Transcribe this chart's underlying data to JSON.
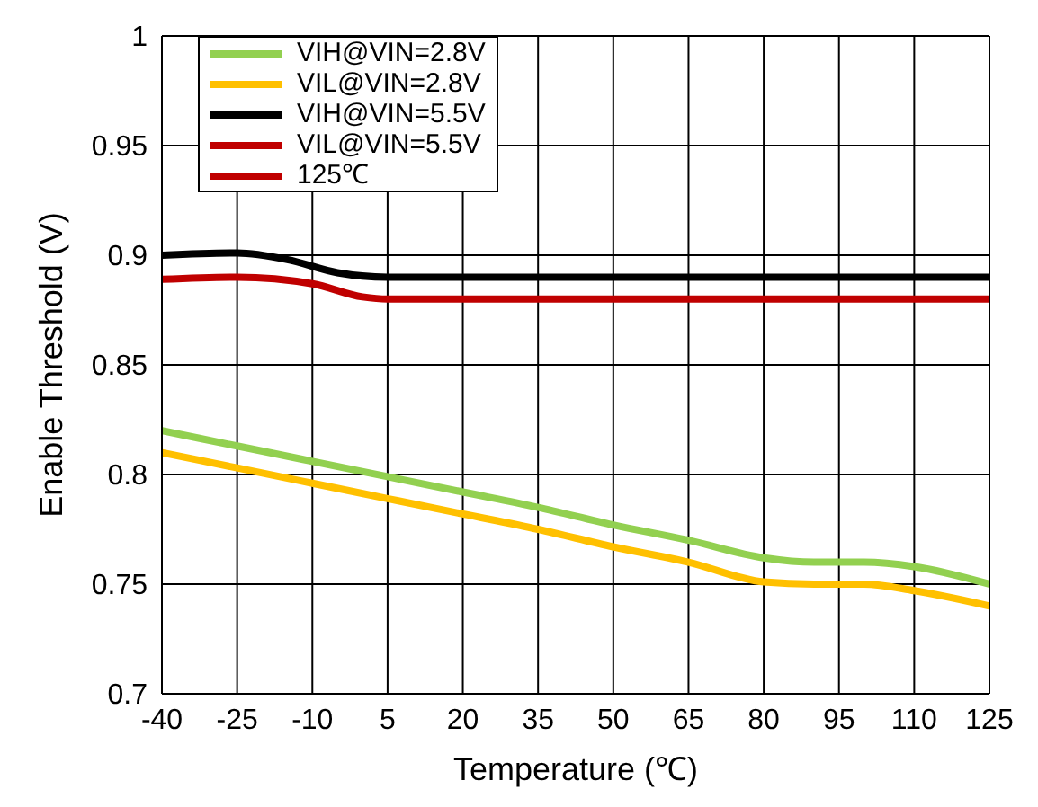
{
  "chart_data": {
    "type": "line",
    "xlabel": "Temperature (℃)",
    "ylabel": "Enable Threshold (V)",
    "xlim": [
      -40,
      125
    ],
    "xticks": [
      -40,
      -25,
      -10,
      5,
      20,
      35,
      50,
      65,
      80,
      95,
      110,
      125
    ],
    "ylim": [
      0.7,
      1
    ],
    "yticks": [
      0.7,
      0.75,
      0.8,
      0.85,
      0.9,
      0.95,
      1
    ],
    "grid": true,
    "legend": "top left",
    "line_style": "solid",
    "marker": "none",
    "series": [
      {
        "name": "VIH@VIN=2.8V",
        "color": "#92d050",
        "x": [
          -40,
          -25,
          -10,
          5,
          20,
          35,
          50,
          65,
          80,
          90,
          100,
          110,
          125
        ],
        "values": [
          0.82,
          0.813,
          0.806,
          0.799,
          0.792,
          0.785,
          0.777,
          0.77,
          0.762,
          0.76,
          0.76,
          0.758,
          0.75
        ]
      },
      {
        "name": "VIL@VIN=2.8V",
        "color": "#ffc000",
        "x": [
          -40,
          -25,
          -10,
          5,
          20,
          35,
          50,
          65,
          80,
          90,
          100,
          110,
          125
        ],
        "values": [
          0.81,
          0.803,
          0.796,
          0.789,
          0.782,
          0.775,
          0.767,
          0.76,
          0.751,
          0.75,
          0.75,
          0.747,
          0.74
        ]
      },
      {
        "name": "VIH@VIN=5.5V",
        "color": "#000000",
        "x": [
          -40,
          -25,
          -15,
          -5,
          5,
          20,
          50,
          80,
          110,
          125
        ],
        "values": [
          0.9,
          0.901,
          0.898,
          0.892,
          0.89,
          0.89,
          0.89,
          0.89,
          0.89,
          0.89
        ]
      },
      {
        "name": "VIL@VIN=5.5V",
        "color": "#c00000",
        "x": [
          -40,
          -25,
          -10,
          0,
          5,
          20,
          50,
          80,
          110,
          125
        ],
        "values": [
          0.889,
          0.89,
          0.887,
          0.881,
          0.88,
          0.88,
          0.88,
          0.88,
          0.88,
          0.88
        ]
      },
      {
        "name": "125℃",
        "color": "#c00000"
      }
    ]
  }
}
